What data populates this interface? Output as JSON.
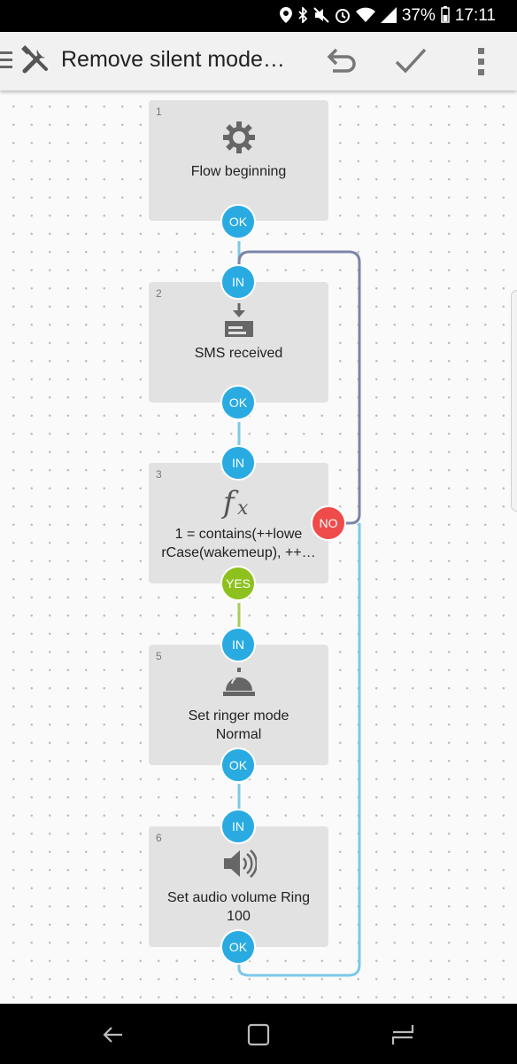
{
  "status_bar": {
    "icons": [
      "location-icon",
      "bluetooth-icon",
      "mute-icon",
      "alarm-icon",
      "wifi-icon",
      "signal-icon"
    ],
    "battery": "37%",
    "time": "17:11"
  },
  "toolbar": {
    "title": "Remove silent mode…",
    "icons": [
      "menu-icon",
      "tools-icon",
      "undo-icon",
      "check-icon",
      "more-icon"
    ]
  },
  "flow": {
    "blocks": [
      {
        "number": "1",
        "label": "Flow beginning",
        "icon": "gear-icon",
        "ports": {
          "out": "OK"
        }
      },
      {
        "number": "2",
        "label": "SMS received",
        "icon": "sms-received-icon",
        "ports": {
          "in": "IN",
          "out": "OK"
        }
      },
      {
        "number": "3",
        "label_line1": "1 = contains(++lowe",
        "label_line2": "rCase(wakemeup), ++…",
        "icon": "function-icon",
        "ports": {
          "in": "IN",
          "yes": "YES",
          "no": "NO"
        }
      },
      {
        "number": "5",
        "label_line1": "Set ringer mode",
        "label_line2": "Normal",
        "icon": "bell-icon",
        "ports": {
          "in": "IN",
          "out": "OK"
        }
      },
      {
        "number": "6",
        "label_line1": "Set audio volume Ring",
        "label_line2": "100",
        "icon": "speaker-icon",
        "ports": {
          "in": "IN",
          "out": "OK"
        }
      }
    ],
    "colors": {
      "port_blue": "#29abe2",
      "port_yes": "#8cc11e",
      "port_no": "#ef4b4b",
      "wire_no": "#7a86a8",
      "wire_ok": "#7ec8e8"
    }
  },
  "nav_bar": {
    "icons": [
      "back-icon",
      "home-icon",
      "recents-icon"
    ]
  }
}
